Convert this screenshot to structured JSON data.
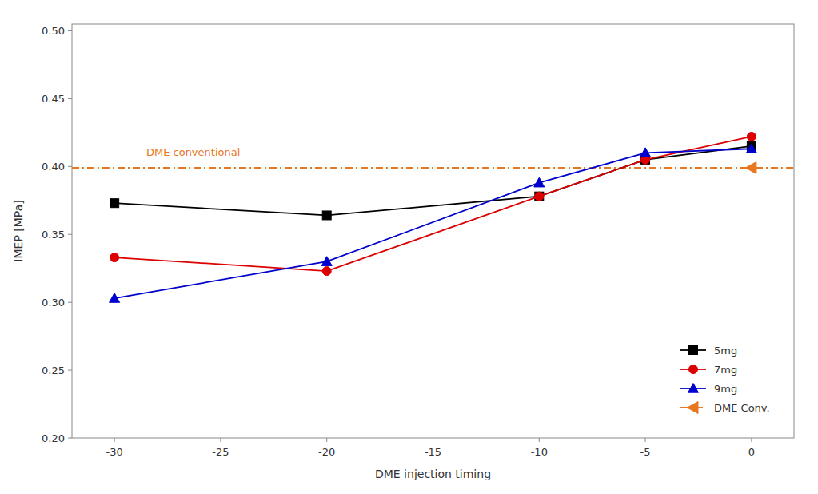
{
  "chart_data": {
    "type": "line",
    "x": [
      -30,
      -20,
      -10,
      -5,
      0
    ],
    "series": [
      {
        "name": "5mg",
        "color": "#000000",
        "marker": "square",
        "line_style": "solid",
        "values": [
          0.373,
          0.364,
          0.378,
          0.405,
          0.415
        ]
      },
      {
        "name": "7mg",
        "color": "#dd0000",
        "marker": "circle",
        "line_style": "solid",
        "values": [
          0.333,
          0.323,
          0.378,
          0.405,
          0.422
        ]
      },
      {
        "name": "9mg",
        "color": "#0000cc",
        "marker": "triangle-up",
        "line_style": "solid",
        "values": [
          0.303,
          0.33,
          0.388,
          0.41,
          0.413
        ]
      },
      {
        "name": "DME Conv.",
        "type": "hline",
        "color": "#e87722",
        "marker": "triangle-left",
        "line_style": "dashdot",
        "x": [
          0
        ],
        "values": [
          0.399
        ]
      }
    ],
    "annotations": [
      {
        "text": "DME conventional",
        "x": -28.5,
        "y": 0.408,
        "color": "#e87722"
      }
    ],
    "xlabel": "DME injection timing",
    "ylabel": "IMEP [MPa]",
    "xlim": [
      -32,
      2
    ],
    "ylim": [
      0.2,
      0.505
    ],
    "xticks": [
      -30,
      -25,
      -20,
      -15,
      -10,
      -5,
      0
    ],
    "yticks": [
      {
        "value": 0.2,
        "label": "0.20"
      },
      0.25,
      {
        "value": 0.3,
        "label": "0.30"
      },
      0.35,
      {
        "value": 0.4,
        "label": "0.40"
      },
      0.45,
      {
        "value": 0.5,
        "label": "0.50"
      }
    ],
    "grid": false,
    "legend": "lower right"
  }
}
